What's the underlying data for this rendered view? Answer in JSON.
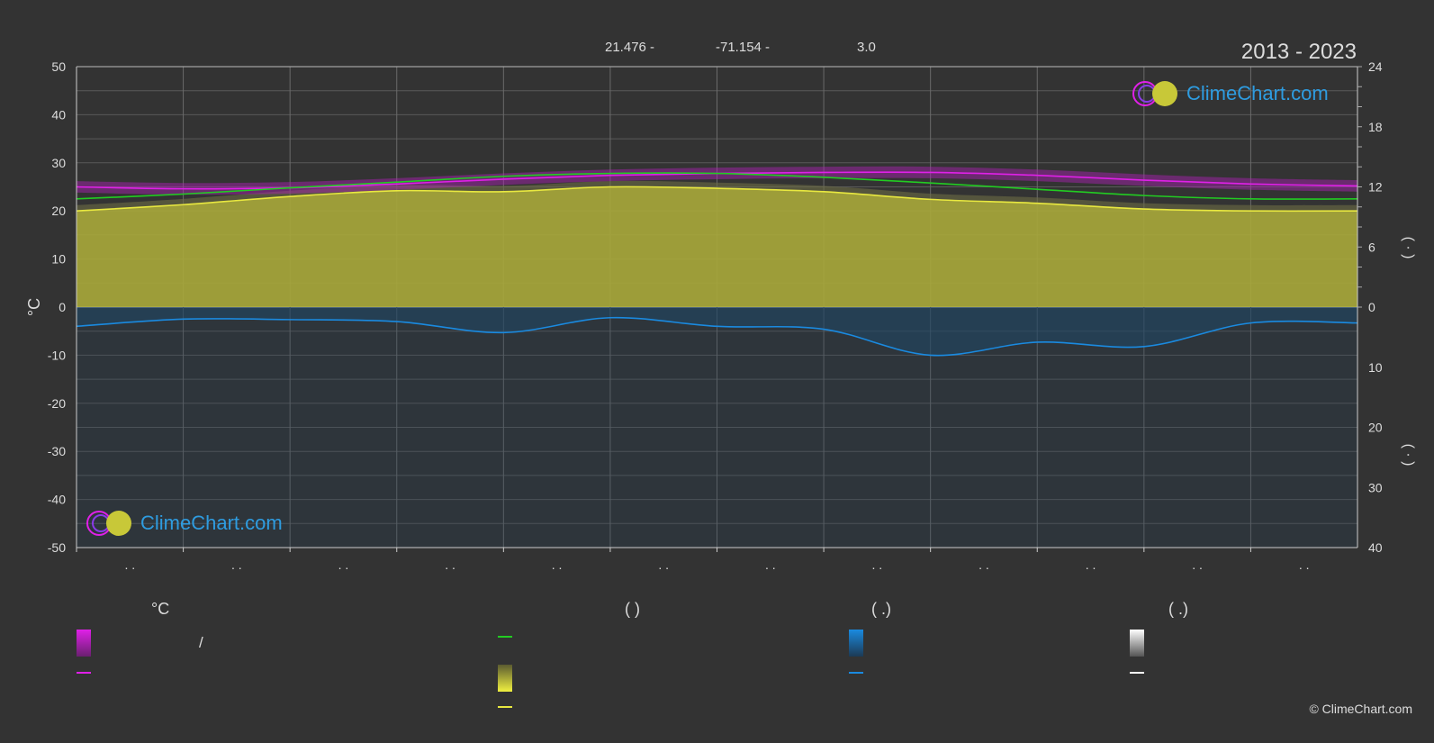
{
  "header": {
    "lat": "21.476 -",
    "lon": "-71.154 -",
    "elev": "3.0",
    "period": "2013 - 2023"
  },
  "logo": {
    "text": "ClimeChart.com"
  },
  "copyright": "© ClimeChart.com",
  "legend": {
    "col1_head": "°C",
    "col2_head": "(          )",
    "col3_head": "(   .)",
    "col4_head": "(   .)",
    "item_slash": "/",
    "colors": {
      "magenta": "#e020e8",
      "green": "#22cc22",
      "yellow": "#e8e840",
      "blue": "#1a8ae0",
      "white": "#ffffff"
    }
  },
  "chart_data": {
    "type": "area",
    "title": "",
    "ylabel": "°C",
    "ylabel_right": "(  ·  )",
    "ylim": [
      -50,
      50
    ],
    "y_ticks": [
      50,
      40,
      30,
      20,
      10,
      0,
      -10,
      -20,
      -30,
      -40,
      -50
    ],
    "right_ticks_top": [
      24,
      18,
      12,
      6,
      0
    ],
    "right_ticks_bottom": [
      10,
      20,
      30,
      40
    ],
    "right_top_max": 24,
    "right_bottom_max": 40,
    "x_tick_labels": [
      ". .",
      ". .",
      ". .",
      ". .",
      ". .",
      ". .",
      ". .",
      ". .",
      ". .",
      ". .",
      ". .",
      ". ."
    ],
    "months": 12,
    "series": [
      {
        "key": "temp_mean",
        "color": "#e020e8",
        "values": [
          25.0,
          24.6,
          24.8,
          25.6,
          26.6,
          27.4,
          27.8,
          28.0,
          28.0,
          27.4,
          26.4,
          25.6,
          25.2
        ]
      },
      {
        "key": "daylight",
        "color": "#22cc22",
        "values": [
          22.5,
          23.5,
          24.8,
          26.0,
          27.2,
          27.8,
          27.8,
          27.0,
          25.8,
          24.5,
          23.2,
          22.5,
          22.5
        ]
      },
      {
        "key": "sunshine",
        "color": "#e8e840",
        "values": [
          20.0,
          21.3,
          23.0,
          24.2,
          24.0,
          25.0,
          24.7,
          24.0,
          22.4,
          21.6,
          20.4,
          20.0,
          20.0
        ]
      },
      {
        "key": "precip",
        "color": "#1a8ae0",
        "values": [
          -4.0,
          -2.5,
          -2.6,
          -3.0,
          -5.3,
          -2.2,
          -4.0,
          -4.6,
          -10.0,
          -7.3,
          -8.2,
          -3.3,
          -3.3
        ]
      }
    ]
  }
}
